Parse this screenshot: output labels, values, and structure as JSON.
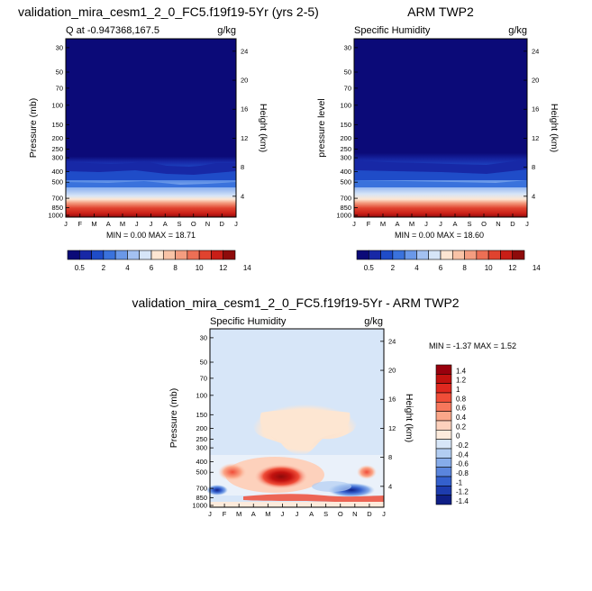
{
  "chart_data": [
    {
      "type": "heatmap",
      "title": "validation_mira_cesm1_2_0_FC5.f19f19-5Yr (yrs 2-5)",
      "left_label": "Q at -0.947368,167.5",
      "units": "g/kg",
      "xlabel": "",
      "ylabel": "Pressure (mb)",
      "ylabel_right": "Height (km)",
      "x_ticks": [
        "J",
        "F",
        "M",
        "A",
        "M",
        "J",
        "J",
        "A",
        "S",
        "O",
        "N",
        "D",
        "J"
      ],
      "y_ticks": [
        "30",
        "50",
        "70",
        "100",
        "150",
        "200",
        "250",
        "300",
        "400",
        "500",
        "700",
        "850",
        "1000"
      ],
      "y_right_ticks": [
        "24",
        "20",
        "16",
        "12",
        "8",
        "4"
      ],
      "minmax": "MIN =   0.00 MAX =  18.71",
      "colorbar_labels": [
        "0.5",
        "2",
        "4",
        "6",
        "8",
        "10",
        "12",
        "14"
      ]
    },
    {
      "type": "heatmap",
      "title": "ARM TWP2",
      "left_label": "Specific Humidity",
      "units": "g/kg",
      "xlabel": "",
      "ylabel": "pressure level",
      "ylabel_right": "Height (km)",
      "x_ticks": [
        "J",
        "F",
        "M",
        "A",
        "M",
        "J",
        "J",
        "A",
        "S",
        "O",
        "N",
        "D",
        "J"
      ],
      "y_ticks": [
        "30",
        "50",
        "70",
        "100",
        "150",
        "200",
        "250",
        "300",
        "400",
        "500",
        "700",
        "850",
        "1000"
      ],
      "y_right_ticks": [
        "24",
        "20",
        "16",
        "12",
        "8",
        "4"
      ],
      "minmax": "MIN =   0.00 MAX =  18.60",
      "colorbar_labels": [
        "0.5",
        "2",
        "4",
        "6",
        "8",
        "10",
        "12",
        "14"
      ]
    },
    {
      "type": "heatmap",
      "title": "validation_mira_cesm1_2_0_FC5.f19f19-5Yr - ARM TWP2",
      "left_label": "Specific Humidity",
      "units": "g/kg",
      "xlabel": "",
      "ylabel": "Pressure (mb)",
      "ylabel_right": "Height (km)",
      "x_ticks": [
        "J",
        "F",
        "M",
        "A",
        "M",
        "J",
        "J",
        "A",
        "S",
        "O",
        "N",
        "D",
        "J"
      ],
      "y_ticks": [
        "30",
        "50",
        "70",
        "100",
        "150",
        "200",
        "250",
        "300",
        "400",
        "500",
        "700",
        "850",
        "1000"
      ],
      "y_right_ticks": [
        "24",
        "20",
        "16",
        "12",
        "8",
        "4"
      ],
      "minmax": "MIN =  -1.37 MAX =   1.52",
      "colorbar_labels": [
        "1.4",
        "1.2",
        "1",
        "0.8",
        "0.6",
        "0.4",
        "0.2",
        "0",
        "-0.2",
        "-0.4",
        "-0.6",
        "-0.8",
        "-1",
        "-1.2",
        "-1.4"
      ]
    }
  ],
  "colors": {
    "seq_scale": [
      "#0b0a78",
      "#1728a6",
      "#1f4cc8",
      "#3a72dc",
      "#6a98e8",
      "#a3c1f2",
      "#d6e5f8",
      "#fde6d2",
      "#f9c3a6",
      "#f49d80",
      "#ec6f55",
      "#e0432f",
      "#c91e17",
      "#8e0b0b"
    ],
    "div_scale": [
      "#99000d",
      "#c2120f",
      "#e0281f",
      "#f04d38",
      "#f7775c",
      "#fba789",
      "#fdd1bc",
      "#fdebdc",
      "#d7e6f8",
      "#b2cdf2",
      "#86acea",
      "#5a85dd",
      "#3460cd",
      "#1d3cae",
      "#0f1f86"
    ]
  }
}
